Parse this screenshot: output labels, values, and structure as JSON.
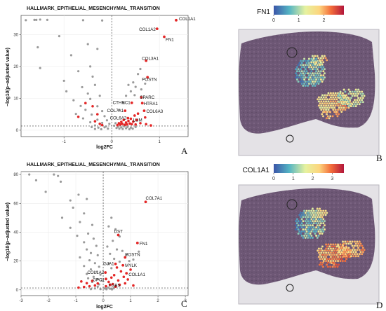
{
  "panels": [
    {
      "id": "A",
      "letter": "A",
      "kind": "volcano",
      "title": "HALLMARK_EPITHELIAL_MESENCHYMAL_TRANSITION",
      "xlabel": "log2FC",
      "ylabel": "−log10(p−adjusted value)"
    },
    {
      "id": "B",
      "letter": "B",
      "kind": "spatial",
      "colorbar_title": "FN1"
    },
    {
      "id": "C",
      "letter": "C",
      "kind": "volcano",
      "title": "HALLMARK_EPITHELIAL_MESENCHYMAL_TRANSITION",
      "xlabel": "log2FC",
      "ylabel": "−log10(p−adjusted value)"
    },
    {
      "id": "D",
      "letter": "D",
      "kind": "spatial",
      "colorbar_title": "COL1A1"
    }
  ],
  "colors": {
    "significant": "#e32626",
    "nonsignificant": "#9a9a9a",
    "tissue": "#6b5570"
  },
  "chart_data": [
    {
      "type": "scatter",
      "panel": "A",
      "title": "HALLMARK_EPITHELIAL_MESENCHYMAL_TRANSITION",
      "xlabel": "log2FC",
      "ylabel": "−log10(p−adjusted value)",
      "xlim": [
        -1.9,
        1.6
      ],
      "ylim": [
        -2,
        36
      ],
      "xticks": [
        -1,
        0,
        1
      ],
      "yticks": [
        0,
        10,
        20,
        30
      ],
      "vline": 0,
      "hline": 1.3,
      "grid": true,
      "labeled_points": [
        {
          "label": "COL1A1",
          "x": 1.35,
          "y": 34.5
        },
        {
          "label": "COL1A2",
          "x": 0.95,
          "y": 31.8
        },
        {
          "label": "FN1",
          "x": 1.1,
          "y": 29.3
        },
        {
          "label": "COL3A1",
          "x": 0.72,
          "y": 21.8
        },
        {
          "label": "POSTN",
          "x": 0.75,
          "y": 16.6
        },
        {
          "label": "SPARC",
          "x": 0.62,
          "y": 10.3
        },
        {
          "label": "CTHRC1",
          "x": 0.42,
          "y": 8.6
        },
        {
          "label": "HTRA1",
          "x": 0.64,
          "y": 8.5
        },
        {
          "label": "COL7A1",
          "x": 0.28,
          "y": 6.1
        },
        {
          "label": "COL6A3",
          "x": 0.68,
          "y": 6.1
        },
        {
          "label": "COL6A2",
          "x": 0.34,
          "y": 3.8
        },
        {
          "label": "LUM",
          "x": 0.52,
          "y": 3.2
        }
      ],
      "significant": [
        [
          -0.55,
          8.5
        ],
        [
          -0.4,
          7.5
        ],
        [
          -0.7,
          4.2
        ],
        [
          -0.3,
          5.0
        ],
        [
          -0.35,
          2.8
        ],
        [
          -0.25,
          2.0
        ],
        [
          -0.2,
          1.6
        ],
        [
          0.12,
          1.6
        ],
        [
          0.15,
          2.2
        ],
        [
          0.18,
          1.8
        ],
        [
          0.2,
          2.6
        ],
        [
          0.22,
          2.0
        ],
        [
          0.25,
          3.2
        ],
        [
          0.27,
          1.7
        ],
        [
          0.3,
          2.4
        ],
        [
          0.32,
          1.8
        ],
        [
          0.35,
          2.9
        ],
        [
          0.38,
          2.1
        ],
        [
          0.42,
          1.9
        ],
        [
          0.45,
          2.7
        ],
        [
          0.48,
          4.6
        ],
        [
          0.55,
          5.2
        ],
        [
          0.6,
          2.2
        ],
        [
          0.7,
          4.0
        ],
        [
          0.72,
          1.9
        ],
        [
          0.5,
          1.8
        ],
        [
          0.82,
          1.5
        ],
        [
          0.4,
          3.6
        ]
      ],
      "nonsignificant": [
        [
          -1.8,
          34.5
        ],
        [
          -1.62,
          34.6
        ],
        [
          -1.58,
          34.6
        ],
        [
          -1.5,
          34.7
        ],
        [
          -1.35,
          34.6
        ],
        [
          -0.6,
          34.5
        ],
        [
          -0.2,
          34.4
        ],
        [
          -1.55,
          26
        ],
        [
          -1.1,
          29.5
        ],
        [
          -1.5,
          19.5
        ],
        [
          -1.0,
          15.5
        ],
        [
          -0.45,
          20
        ],
        [
          -0.85,
          23.5
        ],
        [
          -0.5,
          27
        ],
        [
          -0.3,
          25.5
        ],
        [
          -0.7,
          18.5
        ],
        [
          -0.4,
          16.8
        ],
        [
          -0.95,
          12.2
        ],
        [
          -0.62,
          13.5
        ],
        [
          -0.35,
          14.2
        ],
        [
          -0.5,
          11.5
        ],
        [
          -0.25,
          10.8
        ],
        [
          -0.8,
          9.4
        ],
        [
          -0.45,
          9.8
        ],
        [
          -0.65,
          7.6
        ],
        [
          -0.3,
          7.5
        ],
        [
          -0.55,
          6.4
        ],
        [
          -0.2,
          6.0
        ],
        [
          -0.75,
          5.1
        ],
        [
          -0.42,
          4.9
        ],
        [
          -0.15,
          4.4
        ],
        [
          -0.6,
          3.7
        ],
        [
          -0.3,
          3.3
        ],
        [
          -0.1,
          3.1
        ],
        [
          -0.45,
          2.5
        ],
        [
          -0.2,
          2.3
        ],
        [
          -0.05,
          2.0
        ],
        [
          -0.35,
          1.5
        ],
        [
          -0.12,
          1.2
        ],
        [
          0.05,
          1.4
        ],
        [
          0.08,
          2.2
        ],
        [
          0.1,
          0.7
        ],
        [
          0.13,
          1.1
        ],
        [
          0.16,
          0.5
        ],
        [
          0.2,
          0.9
        ],
        [
          0.23,
          0.4
        ],
        [
          0.26,
          1.2
        ],
        [
          0.3,
          0.6
        ],
        [
          0.33,
          1.0
        ],
        [
          0.37,
          0.3
        ],
        [
          0.4,
          0.8
        ],
        [
          0.44,
          0.5
        ],
        [
          0.5,
          1.0
        ],
        [
          -0.08,
          0.5
        ],
        [
          -0.15,
          0.9
        ],
        [
          -0.22,
          0.3
        ],
        [
          -0.28,
          0.8
        ],
        [
          -0.35,
          0.4
        ],
        [
          -0.42,
          1.0
        ],
        [
          0.3,
          10.8
        ],
        [
          0.4,
          12.2
        ],
        [
          0.5,
          13.6
        ],
        [
          0.45,
          15.0
        ],
        [
          0.55,
          17.6
        ],
        [
          0.6,
          19.2
        ],
        [
          0.35,
          14.2
        ],
        [
          0.25,
          8.5
        ],
        [
          0.15,
          6.3
        ],
        [
          0.48,
          11.0
        ],
        [
          0.62,
          12.8
        ],
        [
          0.7,
          14.6
        ]
      ]
    },
    {
      "type": "scatter",
      "panel": "C",
      "title": "HALLMARK_EPITHELIAL_MESENCHYMAL_TRANSITION",
      "xlabel": "log2FC",
      "ylabel": "−log10(p−adjusted value)",
      "xlim": [
        -3,
        3.1
      ],
      "ylim": [
        -4,
        82
      ],
      "xticks": [
        -3,
        -2,
        -1,
        0,
        1,
        2,
        3
      ],
      "yticks": [
        0,
        20,
        40,
        60,
        80
      ],
      "vline": 0,
      "hline": 1.3,
      "grid": true,
      "labeled_points": [
        {
          "label": "COL7A1",
          "x": 1.55,
          "y": 61
        },
        {
          "label": "DST",
          "x": 0.55,
          "y": 38
        },
        {
          "label": "FN1",
          "x": 1.25,
          "y": 32.5
        },
        {
          "label": "POSTN",
          "x": 0.8,
          "y": 22.5
        },
        {
          "label": "GJA1",
          "x": 0.45,
          "y": 18
        },
        {
          "label": "MYLK",
          "x": 0.72,
          "y": 17
        },
        {
          "label": "COL1A2",
          "x": 0.08,
          "y": 12
        },
        {
          "label": "COL1A1",
          "x": 0.85,
          "y": 11.5
        },
        {
          "label": "GPC1",
          "x": 0.1,
          "y": 7.5
        },
        {
          "label": "TGBS",
          "x": 0.25,
          "y": 3.5
        }
      ],
      "significant": [
        [
          -0.8,
          5.8
        ],
        [
          -0.6,
          4.6
        ],
        [
          -0.5,
          2.5
        ],
        [
          -0.4,
          6.2
        ],
        [
          -0.3,
          3.0
        ],
        [
          -0.7,
          2.0
        ],
        [
          -0.2,
          4.4
        ],
        [
          -0.9,
          1.5
        ],
        [
          0.1,
          2.5
        ],
        [
          0.2,
          5.5
        ],
        [
          0.3,
          8.5
        ],
        [
          0.35,
          4.0
        ],
        [
          0.4,
          10.2
        ],
        [
          0.45,
          2.2
        ],
        [
          0.55,
          6.5
        ],
        [
          0.6,
          3.5
        ],
        [
          0.65,
          12.8
        ],
        [
          0.75,
          9.0
        ],
        [
          0.8,
          4.5
        ],
        [
          0.9,
          7.2
        ],
        [
          1.0,
          14.0
        ],
        [
          1.1,
          3.0
        ],
        [
          0.5,
          15.5
        ]
      ],
      "nonsignificant": [
        [
          -2.7,
          80
        ],
        [
          -1.8,
          80
        ],
        [
          -1.65,
          79
        ],
        [
          -2.45,
          76
        ],
        [
          -1.55,
          75
        ],
        [
          -2.1,
          68
        ],
        [
          -0.9,
          66
        ],
        [
          -1.2,
          62
        ],
        [
          -0.6,
          63
        ],
        [
          -1.1,
          57
        ],
        [
          -0.7,
          53
        ],
        [
          -1.5,
          50
        ],
        [
          -0.85,
          47
        ],
        [
          -0.4,
          45
        ],
        [
          -1.2,
          43
        ],
        [
          -0.55,
          39
        ],
        [
          -0.95,
          37.5
        ],
        [
          -0.35,
          35.5
        ],
        [
          -0.7,
          33
        ],
        [
          -0.25,
          30.5
        ],
        [
          -0.6,
          28
        ],
        [
          -0.45,
          25.5
        ],
        [
          -0.2,
          24
        ],
        [
          -0.85,
          22.5
        ],
        [
          -0.5,
          20.5
        ],
        [
          -0.3,
          18.5
        ],
        [
          -0.7,
          16.5
        ],
        [
          -0.15,
          16.0
        ],
        [
          -0.45,
          14.2
        ],
        [
          -0.25,
          12.5
        ],
        [
          -0.6,
          11.0
        ],
        [
          -0.1,
          10.5
        ],
        [
          -0.35,
          9.0
        ],
        [
          -0.55,
          8.0
        ],
        [
          -0.2,
          7.2
        ],
        [
          -0.05,
          6.5
        ],
        [
          -0.4,
          5.5
        ],
        [
          -0.15,
          3.8
        ],
        [
          -0.3,
          1.0
        ],
        [
          -0.1,
          0.5
        ],
        [
          0.05,
          1.0
        ],
        [
          0.12,
          0.4
        ],
        [
          0.18,
          1.5
        ],
        [
          0.25,
          0.8
        ],
        [
          0.32,
          0.3
        ],
        [
          0.38,
          1.1
        ],
        [
          -0.2,
          2.2
        ],
        [
          -0.45,
          0.5
        ],
        [
          0.3,
          50
        ],
        [
          0.2,
          44
        ],
        [
          0.45,
          42
        ],
        [
          0.6,
          37
        ],
        [
          0.35,
          34
        ],
        [
          0.15,
          30
        ],
        [
          0.5,
          28
        ],
        [
          0.7,
          27
        ],
        [
          0.25,
          25
        ],
        [
          0.85,
          24
        ],
        [
          0.4,
          21.5
        ],
        [
          0.95,
          20
        ],
        [
          0.6,
          19.5
        ],
        [
          1.1,
          21
        ],
        [
          1.3,
          26.5
        ],
        [
          0.2,
          18.0
        ],
        [
          0.3,
          15.0
        ]
      ]
    }
  ]
}
